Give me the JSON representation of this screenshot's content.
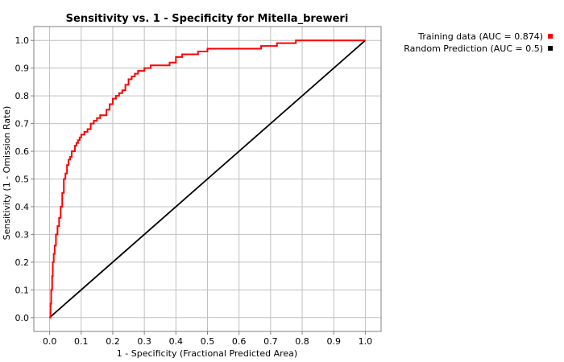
{
  "chart_data": {
    "type": "line",
    "title": "Sensitivity vs. 1 - Specificity for Mitella_breweri",
    "xlabel": "1 - Specificity  (Fractional Predicted Area)",
    "ylabel": "Sensitivity  (1 - Omission Rate)",
    "xlim": [
      -0.05,
      1.05
    ],
    "ylim": [
      -0.05,
      1.05
    ],
    "xticks": [
      0.0,
      0.1,
      0.2,
      0.3,
      0.4,
      0.5,
      0.6,
      0.7,
      0.8,
      0.9,
      1.0
    ],
    "yticks": [
      0.0,
      0.1,
      0.2,
      0.3,
      0.4,
      0.5,
      0.6,
      0.7,
      0.8,
      0.9,
      1.0
    ],
    "xtick_labels": [
      "0.0",
      "0.1",
      "0.2",
      "0.3",
      "0.4",
      "0.5",
      "0.6",
      "0.7",
      "0.8",
      "0.9",
      "1.0"
    ],
    "ytick_labels": [
      "0.0",
      "0.1",
      "0.2",
      "0.3",
      "0.4",
      "0.5",
      "0.6",
      "0.7",
      "0.8",
      "0.9",
      "1.0"
    ],
    "grid": true,
    "legend_position": "outside-top-right",
    "series": [
      {
        "name": "Training data (AUC = 0.874)",
        "color": "#ff0000",
        "x": [
          0.0,
          0.003,
          0.005,
          0.008,
          0.01,
          0.013,
          0.016,
          0.02,
          0.025,
          0.03,
          0.035,
          0.04,
          0.045,
          0.05,
          0.055,
          0.06,
          0.065,
          0.07,
          0.075,
          0.08,
          0.085,
          0.09,
          0.095,
          0.1,
          0.11,
          0.12,
          0.13,
          0.14,
          0.15,
          0.16,
          0.17,
          0.18,
          0.19,
          0.2,
          0.21,
          0.22,
          0.23,
          0.24,
          0.25,
          0.26,
          0.27,
          0.28,
          0.3,
          0.32,
          0.35,
          0.38,
          0.4,
          0.42,
          0.44,
          0.47,
          0.5,
          0.55,
          0.6,
          0.65,
          0.67,
          0.7,
          0.72,
          0.75,
          0.78,
          0.8,
          0.9,
          1.0
        ],
        "y": [
          0.0,
          0.05,
          0.1,
          0.15,
          0.2,
          0.23,
          0.26,
          0.3,
          0.33,
          0.36,
          0.4,
          0.45,
          0.5,
          0.52,
          0.55,
          0.57,
          0.58,
          0.6,
          0.6,
          0.62,
          0.63,
          0.64,
          0.65,
          0.66,
          0.67,
          0.68,
          0.7,
          0.71,
          0.72,
          0.73,
          0.73,
          0.75,
          0.77,
          0.79,
          0.8,
          0.81,
          0.82,
          0.84,
          0.86,
          0.87,
          0.88,
          0.89,
          0.9,
          0.91,
          0.91,
          0.92,
          0.94,
          0.95,
          0.95,
          0.96,
          0.97,
          0.97,
          0.97,
          0.97,
          0.98,
          0.98,
          0.99,
          0.99,
          1.0,
          1.0,
          1.0,
          1.0
        ]
      },
      {
        "name": "Random Prediction (AUC = 0.5)",
        "color": "#000000",
        "x": [
          0.0,
          1.0
        ],
        "y": [
          0.0,
          1.0
        ]
      }
    ]
  }
}
